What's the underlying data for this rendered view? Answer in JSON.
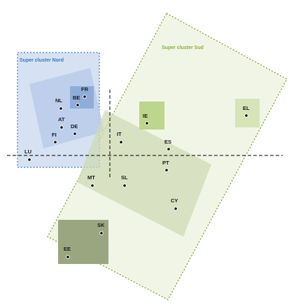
{
  "diagram": {
    "clusters": {
      "nord": {
        "title": "Super cluster Nord",
        "color": "#3a74c4",
        "fill": "#d6e2f2"
      },
      "sud": {
        "title": "Super cluster Sud",
        "color": "#7a9a2e",
        "title_color": "#86b13b",
        "fill": "#e9efd9"
      }
    },
    "countries": [
      {
        "code": "FR"
      },
      {
        "code": "BE"
      },
      {
        "code": "NL"
      },
      {
        "code": "AT"
      },
      {
        "code": "DE"
      },
      {
        "code": "FI"
      },
      {
        "code": "LU"
      },
      {
        "code": "IT"
      },
      {
        "code": "IE"
      },
      {
        "code": "EL"
      },
      {
        "code": "ES"
      },
      {
        "code": "PT"
      },
      {
        "code": "MT"
      },
      {
        "code": "SL"
      },
      {
        "code": "CY"
      },
      {
        "code": "SK"
      },
      {
        "code": "EE"
      }
    ]
  }
}
